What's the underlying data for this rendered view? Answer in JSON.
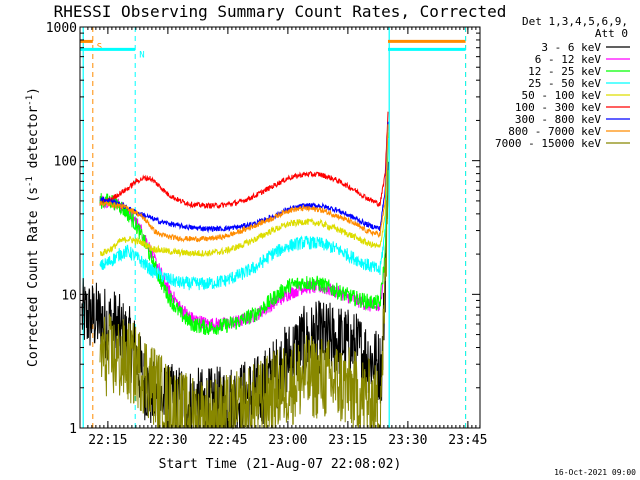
{
  "chart_data": {
    "type": "line",
    "title": "RHESSI Observing Summary Count Rates, Corrected",
    "xlabel": "Start Time (21-Aug-07 22:08:02)",
    "ylabel_main": "Corrected Count Rate (s",
    "ylabel_sup1": "-1",
    "ylabel_mid": " detector",
    "ylabel_sup2": "-1",
    "ylabel_end": ")",
    "yscale": "log",
    "ylim": [
      1,
      1000
    ],
    "xlim_minutes": [
      0,
      100
    ],
    "x_ticks": [
      {
        "label": "22:15",
        "minutes": 6.97
      },
      {
        "label": "22:30",
        "minutes": 21.97
      },
      {
        "label": "22:45",
        "minutes": 36.97
      },
      {
        "label": "23:00",
        "minutes": 51.97
      },
      {
        "label": "23:15",
        "minutes": 66.97
      },
      {
        "label": "23:30",
        "minutes": 81.97
      },
      {
        "label": "23:45",
        "minutes": 96.97
      }
    ],
    "y_ticks": [
      {
        "label": "1",
        "value": 1
      },
      {
        "label": "10",
        "value": 10
      },
      {
        "label": "100",
        "value": 100
      },
      {
        "label": "1000",
        "value": 1000
      }
    ],
    "legend_header": [
      "Det 1,3,4,5,6,9,",
      "Att 0"
    ],
    "legend_position": "top-right, outside plot",
    "series": [
      {
        "name": "3 - 6 keV",
        "color": "#000000",
        "x": [
          0.5,
          3,
          5,
          7,
          9,
          10.5,
          12,
          13.5,
          14.5,
          16,
          19,
          24,
          28,
          33,
          38,
          43,
          45,
          50,
          55,
          60,
          65,
          70,
          73,
          75.5,
          76.5,
          77
        ],
        "y": [
          7,
          6.8,
          6.5,
          6,
          5.8,
          5,
          4.5,
          3.8,
          3,
          2.2,
          1.6,
          1.6,
          1.5,
          1.5,
          1.6,
          1.8,
          1.9,
          2.8,
          4.2,
          4.8,
          4.5,
          3.8,
          3.2,
          2.8,
          20,
          120
        ],
        "noise": 0.28
      },
      {
        "name": "6 - 12 keV",
        "color": "#ff00ff",
        "x": [
          5,
          8,
          10,
          12,
          14,
          16,
          18,
          20,
          22,
          25,
          28,
          32,
          36,
          40,
          44,
          48,
          52,
          56,
          60,
          64,
          68,
          72,
          75,
          76.3,
          77
        ],
        "y": [
          50,
          50,
          46,
          41,
          35,
          28,
          20,
          15,
          11,
          8,
          6.6,
          6,
          6,
          6.3,
          7,
          8.4,
          10,
          11.3,
          11.3,
          10.5,
          9.3,
          8.3,
          7.8,
          20,
          150
        ],
        "noise": 0.05
      },
      {
        "name": "12 - 25 keV",
        "color": "#00ff00",
        "x": [
          5,
          8,
          10,
          12,
          14,
          16,
          18,
          20,
          22,
          25,
          28,
          32,
          36,
          40,
          44,
          48,
          52,
          56,
          60,
          64,
          68,
          72,
          75,
          76.3,
          77
        ],
        "y": [
          50,
          50,
          46,
          40,
          33,
          25,
          18,
          13,
          9.8,
          7.2,
          6,
          5.6,
          5.8,
          6.3,
          7.2,
          9.1,
          11.5,
          12.3,
          12,
          10.7,
          9.5,
          8.8,
          8.5,
          20,
          150
        ],
        "noise": 0.06
      },
      {
        "name": "25 - 50 keV",
        "color": "#00ffff",
        "x": [
          5,
          8,
          10,
          12,
          14,
          16,
          18,
          20,
          22,
          25,
          28,
          32,
          36,
          40,
          44,
          48,
          52,
          56,
          60,
          64,
          68,
          72,
          75,
          76.3,
          77
        ],
        "y": [
          16,
          18,
          20,
          21,
          19,
          17,
          15,
          14,
          13,
          12.2,
          12,
          12,
          12.6,
          14,
          16,
          20,
          23,
          24.5,
          24,
          22,
          19,
          16.5,
          15,
          30,
          160
        ],
        "noise": 0.05
      },
      {
        "name": "50 - 100 keV",
        "color": "#dddd00",
        "x": [
          5,
          8,
          10,
          12,
          14,
          16,
          18,
          20,
          22,
          25,
          28,
          32,
          36,
          40,
          44,
          48,
          52,
          56,
          60,
          64,
          68,
          72,
          75,
          76.3,
          77
        ],
        "y": [
          20,
          22,
          25,
          26,
          25,
          24,
          22,
          21.5,
          21,
          20.5,
          20.3,
          20.3,
          21,
          23,
          26,
          30,
          33.5,
          35,
          34,
          31,
          27.5,
          24,
          22.5,
          40,
          180
        ],
        "noise": 0.025
      },
      {
        "name": "100 - 300 keV",
        "color": "#ff0000",
        "x": [
          5,
          8,
          10,
          12,
          14,
          16,
          17.5,
          18.5,
          20,
          22,
          25,
          28,
          32,
          36,
          40,
          44,
          48,
          52,
          56,
          60,
          64,
          68,
          72,
          75,
          76.3,
          77
        ],
        "y": [
          48,
          52,
          57,
          62,
          70,
          74,
          74,
          70,
          64,
          56,
          50,
          47,
          46,
          46.5,
          49,
          55,
          64,
          74,
          79,
          79,
          72,
          62,
          52,
          47,
          80,
          230
        ],
        "noise": 0.02
      },
      {
        "name": "300 - 800 keV",
        "color": "#0000ff",
        "x": [
          5,
          8,
          10,
          12,
          14,
          16,
          18,
          20,
          22,
          25,
          28,
          32,
          36,
          40,
          44,
          48,
          52,
          56,
          60,
          64,
          68,
          72,
          75,
          76.3,
          77
        ],
        "y": [
          52,
          50,
          47,
          44,
          41,
          39,
          37,
          35,
          34,
          32.5,
          31.5,
          31,
          31,
          32,
          34,
          38,
          43,
          46,
          46,
          43,
          38,
          33,
          31,
          60,
          200
        ],
        "noise": 0.02
      },
      {
        "name": "800 - 7000 keV",
        "color": "#ff8c00",
        "x": [
          5,
          8,
          10,
          12,
          14,
          16,
          17.5,
          18.5,
          20,
          22,
          25,
          28,
          32,
          36,
          40,
          44,
          48,
          52,
          56,
          60,
          64,
          68,
          72,
          75,
          76.3,
          77
        ],
        "y": [
          48,
          47,
          46,
          44,
          41,
          37,
          33,
          30,
          28,
          27,
          26.2,
          26,
          26,
          27,
          29.5,
          33,
          37,
          42.5,
          44,
          43,
          39,
          34.5,
          29.5,
          28,
          50,
          180
        ],
        "noise": 0.02
      },
      {
        "name": "7000 - 15000 keV",
        "color": "#888800",
        "x": [
          5,
          8,
          10,
          12,
          14,
          16,
          18,
          20,
          22,
          25,
          28,
          32,
          36,
          40,
          44,
          48,
          52,
          56,
          60,
          64,
          68,
          72,
          75,
          76.3,
          77
        ],
        "y": [
          3.6,
          3.4,
          3.2,
          3.1,
          2.9,
          2.6,
          2.2,
          1.8,
          1.5,
          1.3,
          1.2,
          1.2,
          1.2,
          1.3,
          1.5,
          1.8,
          2.1,
          2.4,
          2.4,
          2.2,
          1.9,
          1.6,
          1.4,
          10,
          60
        ],
        "noise": 0.32
      }
    ],
    "annotations": [
      {
        "label": "S",
        "color": "#ff8c00",
        "bar_minutes": [
          0,
          3.2
        ],
        "line_minutes": 3.2,
        "bar_value": 780
      },
      {
        "label": "N",
        "color": "#00ffff",
        "bar_minutes": [
          0,
          13.8
        ],
        "line_minutes": 13.8,
        "bar_value": 680
      },
      {
        "color": "#ff8c00",
        "bar_minutes": [
          77,
          96.4
        ],
        "line_minutes": 96.4,
        "bar_value": 780
      },
      {
        "color": "#00ffff",
        "bar_minutes": [
          77,
          96.4
        ],
        "line_minutes": 96.4,
        "bar_value": 680
      }
    ],
    "saa_lines_minutes": [
      0.8,
      77.3
    ],
    "saa_color": "#00ffff",
    "footer_date": "16-Oct-2021 09:00",
    "grid": false
  }
}
